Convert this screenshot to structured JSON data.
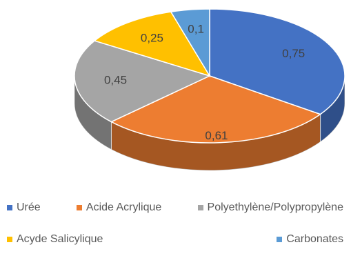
{
  "chart_data": {
    "type": "pie3d",
    "categories": [
      "Urée",
      "Acide Acrylique",
      "Polyethylène/Polypropylène",
      "Acyde Salicylique",
      "Carbonates"
    ],
    "values": [
      0.75,
      0.61,
      0.45,
      0.25,
      0.1
    ],
    "value_labels": [
      "0,75",
      "0,61",
      "0,45",
      "0,25",
      "0,1"
    ],
    "colors": [
      "#4472c4",
      "#ed7d31",
      "#a5a5a5",
      "#ffc000",
      "#5b9bd5"
    ],
    "legend": "bottom"
  }
}
